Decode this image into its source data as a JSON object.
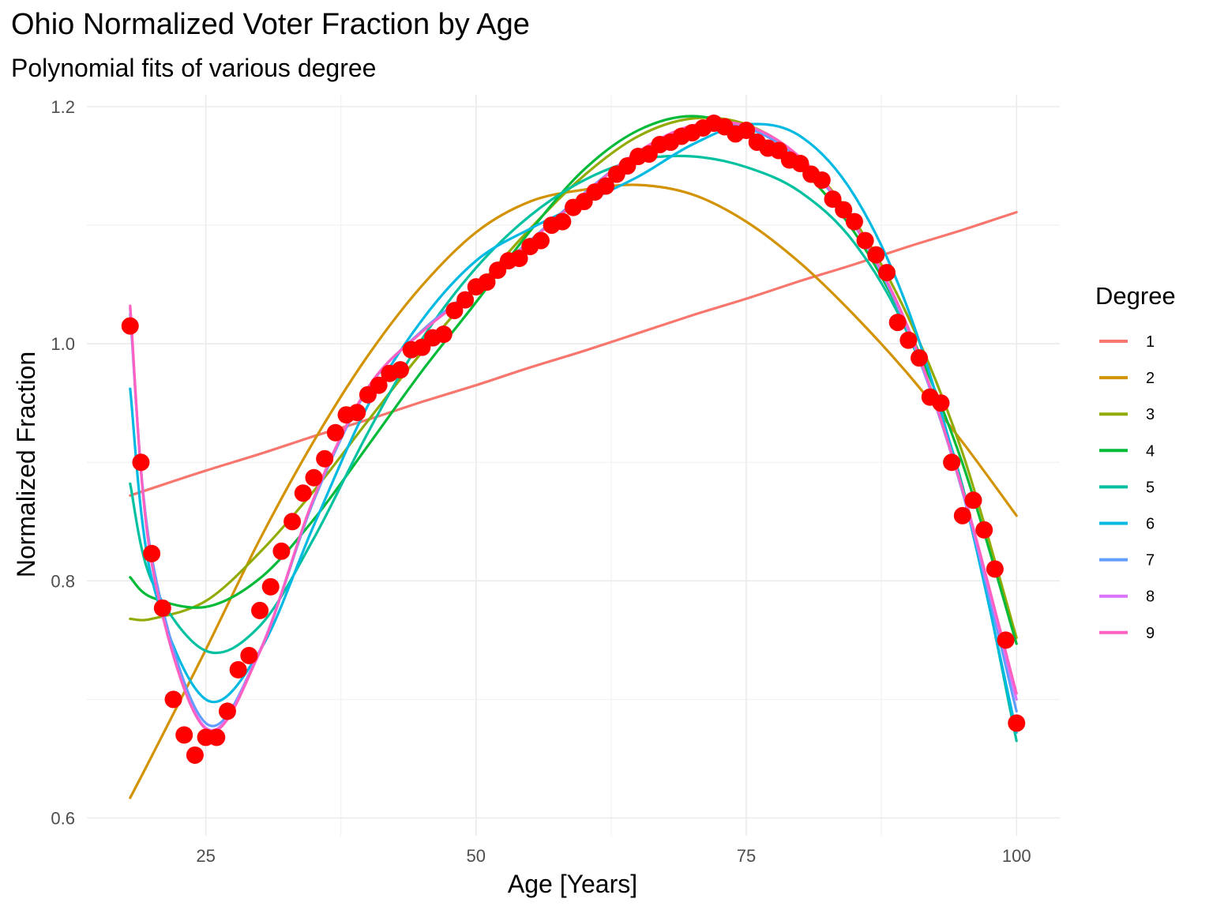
{
  "chart_data": {
    "type": "scatter",
    "title": "Ohio Normalized Voter Fraction by Age",
    "subtitle": "Polynomial fits of various degree",
    "xlabel": "Age [Years]",
    "ylabel": "Normalized Fraction",
    "xlim": [
      14,
      104
    ],
    "ylim": [
      0.585,
      1.21
    ],
    "x_ticks": [
      25,
      50,
      75,
      100
    ],
    "x_tick_labels": [
      "25",
      "50",
      "75",
      "100"
    ],
    "y_ticks": [
      0.6,
      0.8,
      1.0,
      1.2
    ],
    "y_tick_labels": [
      "0.6",
      "0.8",
      "1.0",
      "1.2"
    ],
    "grid": true,
    "legend": {
      "title": "Degree",
      "position": "right"
    },
    "points": {
      "color": "#ff0000",
      "x": [
        18,
        19,
        20,
        21,
        22,
        23,
        24,
        25,
        26,
        27,
        28,
        29,
        30,
        31,
        32,
        33,
        34,
        35,
        36,
        37,
        38,
        39,
        40,
        41,
        42,
        43,
        44,
        45,
        46,
        47,
        48,
        49,
        50,
        51,
        52,
        53,
        54,
        55,
        56,
        57,
        58,
        59,
        60,
        61,
        62,
        63,
        64,
        65,
        66,
        67,
        68,
        69,
        70,
        71,
        72,
        73,
        74,
        75,
        76,
        77,
        78,
        79,
        80,
        81,
        82,
        83,
        84,
        85,
        86,
        87,
        88,
        89,
        90,
        91,
        92,
        93,
        94,
        95,
        96,
        97,
        98,
        99,
        100
      ],
      "y": [
        1.015,
        0.9,
        0.823,
        0.777,
        0.7,
        0.67,
        0.653,
        0.668,
        0.668,
        0.69,
        0.725,
        0.737,
        0.775,
        0.795,
        0.825,
        0.85,
        0.874,
        0.887,
        0.903,
        0.925,
        0.94,
        0.942,
        0.957,
        0.965,
        0.975,
        0.978,
        0.995,
        0.997,
        1.005,
        1.008,
        1.028,
        1.037,
        1.048,
        1.052,
        1.062,
        1.07,
        1.072,
        1.082,
        1.087,
        1.1,
        1.103,
        1.115,
        1.12,
        1.128,
        1.133,
        1.143,
        1.15,
        1.158,
        1.16,
        1.168,
        1.17,
        1.175,
        1.178,
        1.182,
        1.186,
        1.183,
        1.177,
        1.18,
        1.17,
        1.165,
        1.163,
        1.155,
        1.152,
        1.143,
        1.138,
        1.122,
        1.113,
        1.103,
        1.087,
        1.075,
        1.06,
        1.018,
        1.003,
        0.988,
        0.955,
        0.95,
        0.9,
        0.855,
        0.868,
        0.843,
        0.81,
        0.75,
        0.68
      ]
    },
    "series": [
      {
        "name": "1",
        "color": "#F8766D",
        "x": [
          18,
          20,
          25,
          30,
          35,
          40,
          45,
          50,
          55,
          60,
          65,
          70,
          75,
          80,
          85,
          90,
          95,
          100
        ],
        "y": [
          0.872,
          0.878,
          0.893,
          0.907,
          0.922,
          0.936,
          0.951,
          0.965,
          0.98,
          0.994,
          1.009,
          1.024,
          1.038,
          1.053,
          1.067,
          1.082,
          1.096,
          1.111
        ]
      },
      {
        "name": "2",
        "color": "#D39200",
        "x": [
          18,
          20,
          25,
          30,
          35,
          40,
          45,
          50,
          55,
          60,
          65,
          70,
          75,
          80,
          85,
          90,
          95,
          100
        ],
        "y": [
          0.617,
          0.652,
          0.742,
          0.835,
          0.918,
          0.99,
          1.049,
          1.094,
          1.12,
          1.13,
          1.134,
          1.126,
          1.103,
          1.068,
          1.024,
          0.974,
          0.917,
          0.855
        ]
      },
      {
        "name": "3",
        "color": "#93AA00",
        "x": [
          18,
          20,
          25,
          30,
          35,
          40,
          45,
          50,
          55,
          60,
          65,
          70,
          75,
          80,
          85,
          90,
          95,
          100
        ],
        "y": [
          0.768,
          0.768,
          0.783,
          0.824,
          0.876,
          0.935,
          0.993,
          1.046,
          1.097,
          1.142,
          1.175,
          1.19,
          1.185,
          1.157,
          1.104,
          1.022,
          0.908,
          0.752
        ]
      },
      {
        "name": "4",
        "color": "#00BA38",
        "x": [
          18,
          20,
          25,
          30,
          35,
          40,
          45,
          50,
          55,
          60,
          65,
          70,
          75,
          80,
          85,
          90,
          95,
          100
        ],
        "y": [
          0.803,
          0.786,
          0.778,
          0.802,
          0.852,
          0.914,
          0.977,
          1.035,
          1.095,
          1.147,
          1.18,
          1.192,
          1.18,
          1.148,
          1.094,
          1.012,
          0.899,
          0.747
        ]
      },
      {
        "name": "5",
        "color": "#00C19F",
        "x": [
          18,
          20,
          25,
          30,
          35,
          40,
          45,
          50,
          55,
          60,
          65,
          70,
          75,
          80,
          85,
          90,
          95,
          100
        ],
        "y": [
          0.882,
          0.8,
          0.741,
          0.762,
          0.836,
          0.925,
          1.004,
          1.064,
          1.108,
          1.138,
          1.155,
          1.158,
          1.149,
          1.128,
          1.085,
          1.007,
          0.88,
          0.665
        ]
      },
      {
        "name": "6",
        "color": "#00B9E3",
        "x": [
          18,
          20,
          25,
          30,
          35,
          40,
          45,
          50,
          55,
          60,
          65,
          70,
          75,
          80,
          85,
          90,
          95,
          100
        ],
        "y": [
          0.962,
          0.802,
          0.7,
          0.741,
          0.847,
          0.948,
          1.02,
          1.07,
          1.097,
          1.119,
          1.141,
          1.168,
          1.185,
          1.175,
          1.125,
          1.028,
          0.876,
          0.672
        ]
      },
      {
        "name": "7",
        "color": "#619CFF",
        "x": [
          18,
          20,
          25,
          30,
          35,
          40,
          45,
          50,
          55,
          60,
          65,
          70,
          75,
          80,
          85,
          90,
          95,
          100
        ],
        "y": [
          1.025,
          0.82,
          0.68,
          0.741,
          0.868,
          0.962,
          1.011,
          1.048,
          1.087,
          1.127,
          1.162,
          1.183,
          1.182,
          1.155,
          1.1,
          1.01,
          0.875,
          0.69
        ]
      },
      {
        "name": "8",
        "color": "#DB72FB",
        "x": [
          18,
          20,
          25,
          30,
          35,
          40,
          45,
          50,
          55,
          60,
          65,
          70,
          75,
          80,
          85,
          90,
          95,
          100
        ],
        "y": [
          1.03,
          0.815,
          0.676,
          0.741,
          0.87,
          0.963,
          1.01,
          1.046,
          1.086,
          1.126,
          1.162,
          1.184,
          1.184,
          1.157,
          1.101,
          1.012,
          0.876,
          0.7
        ]
      },
      {
        "name": "9",
        "color": "#FF61C3",
        "x": [
          18,
          20,
          25,
          30,
          35,
          40,
          45,
          50,
          55,
          60,
          65,
          70,
          75,
          80,
          85,
          90,
          95,
          100
        ],
        "y": [
          1.032,
          0.815,
          0.675,
          0.74,
          0.87,
          0.963,
          1.01,
          1.046,
          1.086,
          1.126,
          1.162,
          1.184,
          1.184,
          1.157,
          1.101,
          1.013,
          0.877,
          0.705
        ]
      }
    ]
  }
}
